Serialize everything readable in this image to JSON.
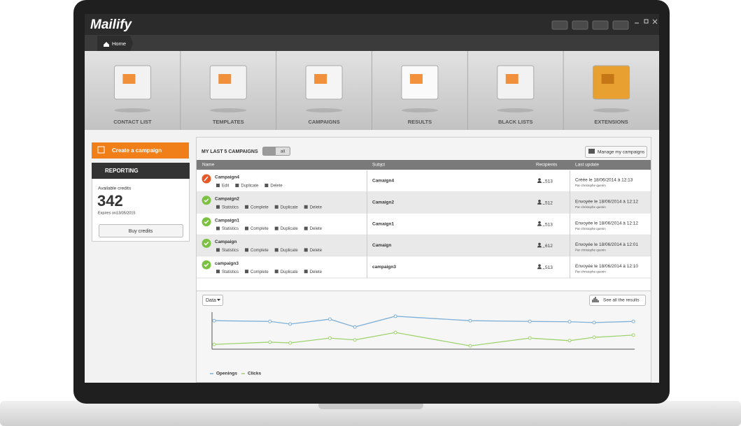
{
  "app": {
    "logo": "Mailify",
    "breadcrumb": "Home"
  },
  "nav": [
    "CONTACT LIST",
    "TEMPLATES",
    "CAMPAIGNS",
    "RESULTS",
    "BLACK LISTS",
    "EXTENSIONS"
  ],
  "sidebar": {
    "create": "Create a campaign",
    "reporting": {
      "title": "REPORTING",
      "credits_label": "Available credits",
      "credits": 342,
      "expires": "Expires on13/05/2015",
      "button": "Buy credits"
    }
  },
  "campaigns": {
    "title": "MY LAST 5 CAMPAIGNS",
    "toggle": "all",
    "manage": "Manage my campaigns",
    "columns": [
      "Name",
      "Subjct",
      "Recipients",
      "Last update"
    ],
    "rows": [
      {
        "name": "Campaign4",
        "actions": [
          "Edit",
          "Duplicate",
          "Delete"
        ],
        "subject": "Camaign4",
        "recipients": 513,
        "update": "Créée le 18/06/2014 à 12:13",
        "by": "Par christophe quenin"
      },
      {
        "name": "Campaign2",
        "actions": [
          "Statistics",
          "Complete",
          "Duplicate",
          "Delete"
        ],
        "subject": "Camaign2",
        "recipients": 512,
        "update": "Envoyée le 18/06/2014 à 12:12",
        "by": "Par christophe quenin"
      },
      {
        "name": "Campaign1",
        "actions": [
          "Statistics",
          "Complete",
          "Duplicate",
          "Delete"
        ],
        "subject": "Camaign1",
        "recipients": 513,
        "update": "Envoyée le 18/06/2014 à 12:12",
        "by": "Par christophe quenin"
      },
      {
        "name": "Campaign",
        "actions": [
          "Statistics",
          "Complete",
          "Duplicate",
          "Delete"
        ],
        "subject": "Camaign",
        "recipients": 612,
        "update": "Envoyée le 18/06/2014 à 12:01",
        "by": "Par christophe quenin"
      },
      {
        "name": "campaign3",
        "actions": [
          "Statistics",
          "Complete",
          "Duplicate",
          "Delete"
        ],
        "subject": "campaign3",
        "recipients": 513,
        "update": "Envoyée le 18/06/2014 à 12:10",
        "by": "Par christophe quenin"
      }
    ]
  },
  "results": {
    "dropdown": "Data",
    "button": "See all the results",
    "chart_data": {
      "type": "line",
      "x": [
        0.5,
        13.7,
        18.5,
        27.9,
        33.8,
        43.4,
        61.1,
        75.2,
        84.6,
        90.4,
        99.7
      ],
      "xlim": [
        0,
        100
      ],
      "ylim": [
        0,
        100
      ],
      "series": [
        {
          "name": "Openings",
          "color": "#7fb0d8",
          "values": [
            77,
            75,
            68,
            81,
            60,
            89,
            77,
            75,
            74,
            72,
            75
          ]
        },
        {
          "name": "Clicks",
          "color": "#9fd36f",
          "values": [
            13,
            19,
            17,
            30,
            25,
            45,
            9,
            30,
            23,
            32,
            38
          ]
        }
      ]
    }
  }
}
